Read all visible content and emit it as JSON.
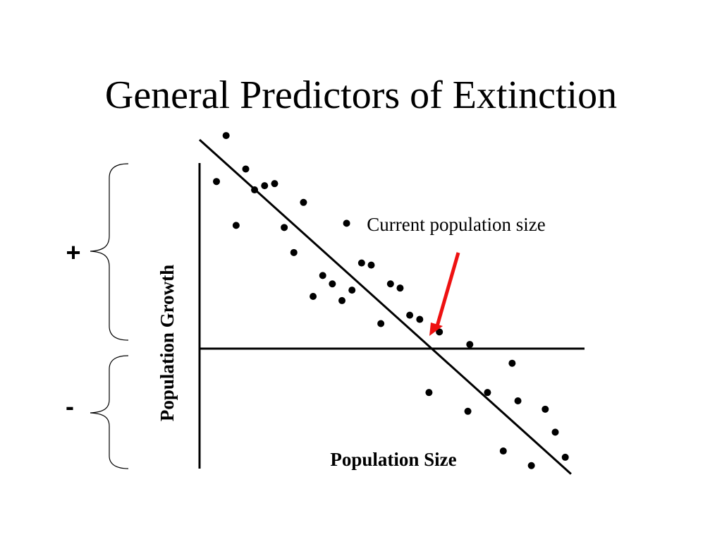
{
  "slide": {
    "title": "General Predictors of Extinction"
  },
  "brackets": {
    "positive_label": "+",
    "negative_label": "-"
  },
  "colors": {
    "axis": "#000000",
    "points": "#000000",
    "trend": "#000000",
    "arrow": "#ee1111"
  },
  "chart_data": {
    "type": "scatter",
    "title": "",
    "xlabel": "Population Size",
    "ylabel": "Population Growth",
    "xlim": [
      0,
      10
    ],
    "ylim": [
      -1,
      1
    ],
    "grid": false,
    "legend": "none",
    "points": [
      {
        "x": 0.44,
        "y": 0.8
      },
      {
        "x": 0.69,
        "y": 1.02
      },
      {
        "x": 0.95,
        "y": 0.59
      },
      {
        "x": 1.2,
        "y": 0.86
      },
      {
        "x": 1.43,
        "y": 0.76
      },
      {
        "x": 1.69,
        "y": 0.78
      },
      {
        "x": 1.95,
        "y": 0.79
      },
      {
        "x": 2.2,
        "y": 0.58
      },
      {
        "x": 2.45,
        "y": 0.46
      },
      {
        "x": 2.7,
        "y": 0.7
      },
      {
        "x": 2.95,
        "y": 0.25
      },
      {
        "x": 3.2,
        "y": 0.35
      },
      {
        "x": 3.45,
        "y": 0.31
      },
      {
        "x": 3.7,
        "y": 0.23
      },
      {
        "x": 3.82,
        "y": 0.6
      },
      {
        "x": 3.96,
        "y": 0.28
      },
      {
        "x": 4.21,
        "y": 0.41
      },
      {
        "x": 4.46,
        "y": 0.4
      },
      {
        "x": 4.71,
        "y": 0.12
      },
      {
        "x": 4.96,
        "y": 0.31
      },
      {
        "x": 5.21,
        "y": 0.29
      },
      {
        "x": 5.46,
        "y": 0.16
      },
      {
        "x": 5.72,
        "y": 0.14
      },
      {
        "x": 5.96,
        "y": -0.21
      },
      {
        "x": 6.23,
        "y": 0.08
      },
      {
        "x": 6.97,
        "y": -0.3
      },
      {
        "x": 7.02,
        "y": 0.02
      },
      {
        "x": 7.48,
        "y": -0.21
      },
      {
        "x": 7.89,
        "y": -0.49
      },
      {
        "x": 8.12,
        "y": -0.07
      },
      {
        "x": 8.27,
        "y": -0.25
      },
      {
        "x": 8.62,
        "y": -0.56
      },
      {
        "x": 8.98,
        "y": -0.29
      },
      {
        "x": 9.24,
        "y": -0.4
      },
      {
        "x": 9.5,
        "y": -0.52
      }
    ],
    "trendline": {
      "x": [
        0,
        9.65
      ],
      "y": [
        1.0,
        -0.6
      ]
    },
    "annotations": [
      {
        "text": "Current population size",
        "target_x": 6.1,
        "target_y": 0.1
      }
    ]
  }
}
